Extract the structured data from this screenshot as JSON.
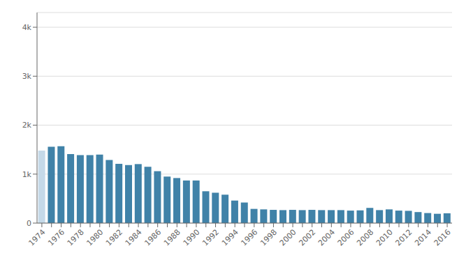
{
  "chart_data": {
    "type": "bar",
    "categories": [
      "1974",
      null,
      "1976",
      null,
      "1978",
      null,
      "1980",
      null,
      "1982",
      null,
      "1984",
      null,
      "1986",
      null,
      "1988",
      null,
      "1990",
      null,
      "1992",
      null,
      "1994",
      null,
      "1996",
      null,
      "1998",
      null,
      "2000",
      null,
      "2002",
      null,
      "2004",
      null,
      "2006",
      null,
      "2008",
      null,
      "2010",
      null,
      "2012",
      null,
      "2014",
      null,
      "2016"
    ],
    "values": [
      1480,
      1560,
      1570,
      1410,
      1390,
      1390,
      1400,
      1290,
      1210,
      1185,
      1205,
      1150,
      1060,
      950,
      920,
      870,
      870,
      650,
      620,
      580,
      460,
      420,
      290,
      280,
      270,
      265,
      270,
      265,
      270,
      265,
      265,
      265,
      255,
      260,
      310,
      265,
      280,
      255,
      250,
      225,
      205,
      190,
      200
    ],
    "colors": [
      "#c5d9e8",
      "#4082a8",
      "#4082a8",
      "#4082a8",
      "#4082a8",
      "#4082a8",
      "#4082a8",
      "#4082a8",
      "#4082a8",
      "#4082a8",
      "#4082a8",
      "#4082a8",
      "#4082a8",
      "#4082a8",
      "#4082a8",
      "#4082a8",
      "#4082a8",
      "#4082a8",
      "#4082a8",
      "#4082a8",
      "#4082a8",
      "#4082a8",
      "#4082a8",
      "#4082a8",
      "#4082a8",
      "#4082a8",
      "#4082a8",
      "#4082a8",
      "#4082a8",
      "#4082a8",
      "#4082a8",
      "#4082a8",
      "#4082a8",
      "#4082a8",
      "#4082a8",
      "#4082a8",
      "#4082a8",
      "#4082a8",
      "#4082a8",
      "#4082a8",
      "#4082a8",
      "#4082a8",
      "#4082a8"
    ],
    "ylim": [
      0,
      4300
    ],
    "yticks": [
      0,
      {
        "value": 1000,
        "label": "1k"
      },
      {
        "value": 2000,
        "label": "2k"
      },
      {
        "value": 3000,
        "label": "3k"
      },
      {
        "value": 4000,
        "label": "4k"
      }
    ],
    "grid": true
  }
}
